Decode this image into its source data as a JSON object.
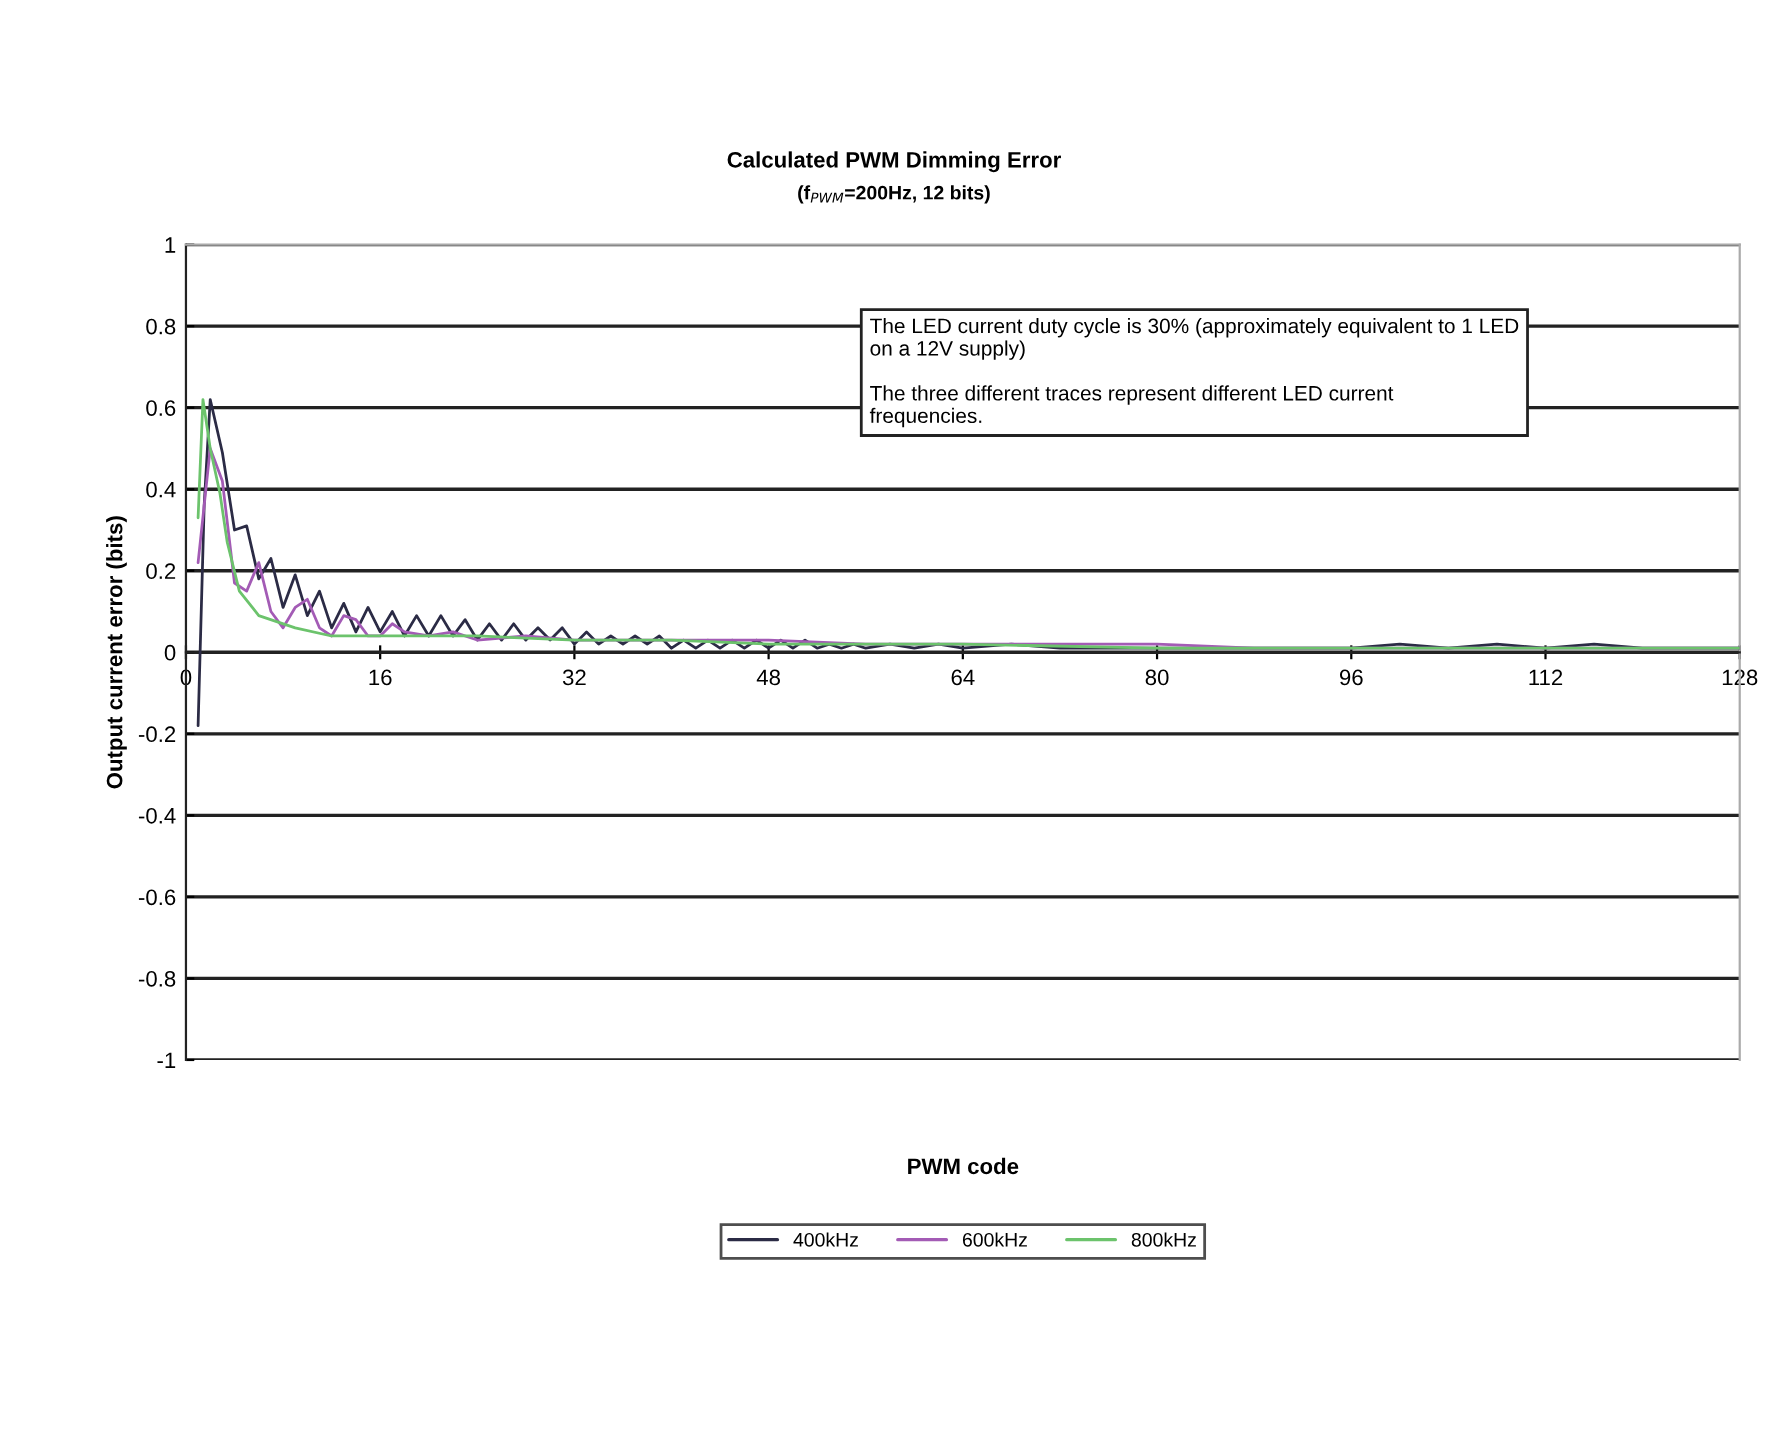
{
  "chart_data": {
    "type": "line",
    "title": "Calculated PWM Dimming Error",
    "subtitle": "(f$_{PWM}$=200Hz, 12 bits)",
    "xlabel": "PWM code",
    "ylabel": "Output current error (bits)",
    "annotations": [
      "The LED current duty cycle is 30% (approximately equivalent to 1 LED\non a 12V supply)",
      "The three different traces represent different LED current\nfrequencies."
    ],
    "xlim": [
      0,
      128
    ],
    "xticks": [
      0,
      16,
      32,
      48,
      64,
      80,
      96,
      112,
      128
    ],
    "ylim": [
      -1,
      1
    ],
    "yticks": [
      -1,
      -0.8,
      -0.6,
      -0.4,
      -0.2,
      0,
      0.2,
      0.4,
      0.6,
      0.8,
      1
    ],
    "grid": "y",
    "legend": "bottom",
    "marker": "none",
    "line_style": "solid",
    "series": [
      {
        "name": "400kHz",
        "color": "#2b2b45",
        "x": [
          1,
          1.5,
          2,
          3,
          4,
          5,
          6,
          7,
          8,
          9,
          10,
          11,
          12,
          13,
          14,
          15,
          16,
          17,
          18,
          19,
          20,
          21,
          22,
          23,
          24,
          25,
          26,
          27,
          28,
          29,
          30,
          31,
          32,
          33,
          34,
          35,
          36,
          37,
          38,
          39,
          40,
          41,
          42,
          43,
          44,
          45,
          46,
          47,
          48,
          49,
          50,
          51,
          52,
          53,
          54,
          55,
          56,
          58,
          60,
          62,
          64,
          68,
          72,
          76,
          80,
          84,
          88,
          92,
          96,
          100,
          104,
          108,
          112,
          116,
          120,
          124,
          128
        ],
        "values": [
          -0.18,
          0.36,
          0.62,
          0.49,
          0.3,
          0.31,
          0.18,
          0.23,
          0.11,
          0.19,
          0.09,
          0.15,
          0.06,
          0.12,
          0.05,
          0.11,
          0.05,
          0.1,
          0.04,
          0.09,
          0.04,
          0.09,
          0.04,
          0.08,
          0.03,
          0.07,
          0.03,
          0.07,
          0.03,
          0.06,
          0.03,
          0.06,
          0.02,
          0.05,
          0.02,
          0.04,
          0.02,
          0.04,
          0.02,
          0.04,
          0.01,
          0.03,
          0.01,
          0.03,
          0.01,
          0.03,
          0.01,
          0.03,
          0.01,
          0.03,
          0.01,
          0.03,
          0.01,
          0.02,
          0.01,
          0.02,
          0.01,
          0.02,
          0.01,
          0.02,
          0.01,
          0.02,
          0.01,
          0.01,
          0.01,
          0.01,
          0.01,
          0.01,
          0.01,
          0.02,
          0.01,
          0.02,
          0.01,
          0.02,
          0.01,
          0.01,
          0.01
        ]
      },
      {
        "name": "600kHz",
        "color": "#a35bb5",
        "x": [
          1,
          2,
          3,
          4,
          5,
          6,
          7,
          8,
          9,
          10,
          11,
          12,
          13,
          14,
          15,
          16,
          17,
          18,
          20,
          22,
          24,
          28,
          32,
          36,
          40,
          48,
          56,
          64,
          72,
          80,
          88,
          96,
          104,
          112,
          120,
          128
        ],
        "values": [
          0.22,
          0.5,
          0.42,
          0.17,
          0.15,
          0.22,
          0.1,
          0.06,
          0.11,
          0.13,
          0.06,
          0.04,
          0.09,
          0.08,
          0.04,
          0.04,
          0.07,
          0.05,
          0.04,
          0.05,
          0.03,
          0.04,
          0.03,
          0.03,
          0.03,
          0.03,
          0.02,
          0.02,
          0.02,
          0.02,
          0.01,
          0.01,
          0.01,
          0.01,
          0.01,
          0.01
        ]
      },
      {
        "name": "800kHz",
        "color": "#6cc36c",
        "x": [
          1,
          1.4,
          2,
          2.8,
          3.4,
          4.4,
          6,
          9,
          12,
          16,
          24,
          32,
          40,
          48,
          64,
          80,
          96,
          112,
          128
        ],
        "values": [
          0.33,
          0.62,
          0.5,
          0.39,
          0.27,
          0.15,
          0.09,
          0.06,
          0.04,
          0.04,
          0.04,
          0.03,
          0.03,
          0.02,
          0.02,
          0.01,
          0.01,
          0.01,
          0.01
        ]
      }
    ]
  }
}
